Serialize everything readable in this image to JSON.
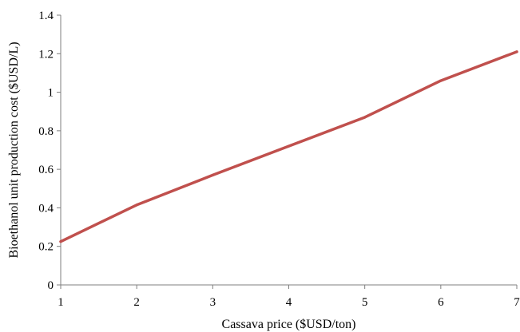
{
  "chart_data": {
    "type": "line",
    "xlabel": "Cassava price ($USD/ton)",
    "ylabel": "Bioethanol unit production cost ($USD/L)",
    "xlim": [
      1,
      7
    ],
    "ylim": [
      0,
      1.4
    ],
    "x_ticks": [
      "1",
      "2",
      "3",
      "4",
      "5",
      "6",
      "7"
    ],
    "y_ticks": [
      "0",
      "0.2",
      "0.4",
      "0.6",
      "0.8",
      "1",
      "1.2",
      "1.4"
    ],
    "grid": false,
    "legend": "none",
    "series": [
      {
        "color": "#c0504d",
        "x": [
          1,
          2,
          3,
          4,
          5,
          6,
          7
        ],
        "y": [
          0.225,
          0.415,
          0.57,
          0.72,
          0.87,
          1.06,
          1.21
        ]
      }
    ]
  }
}
